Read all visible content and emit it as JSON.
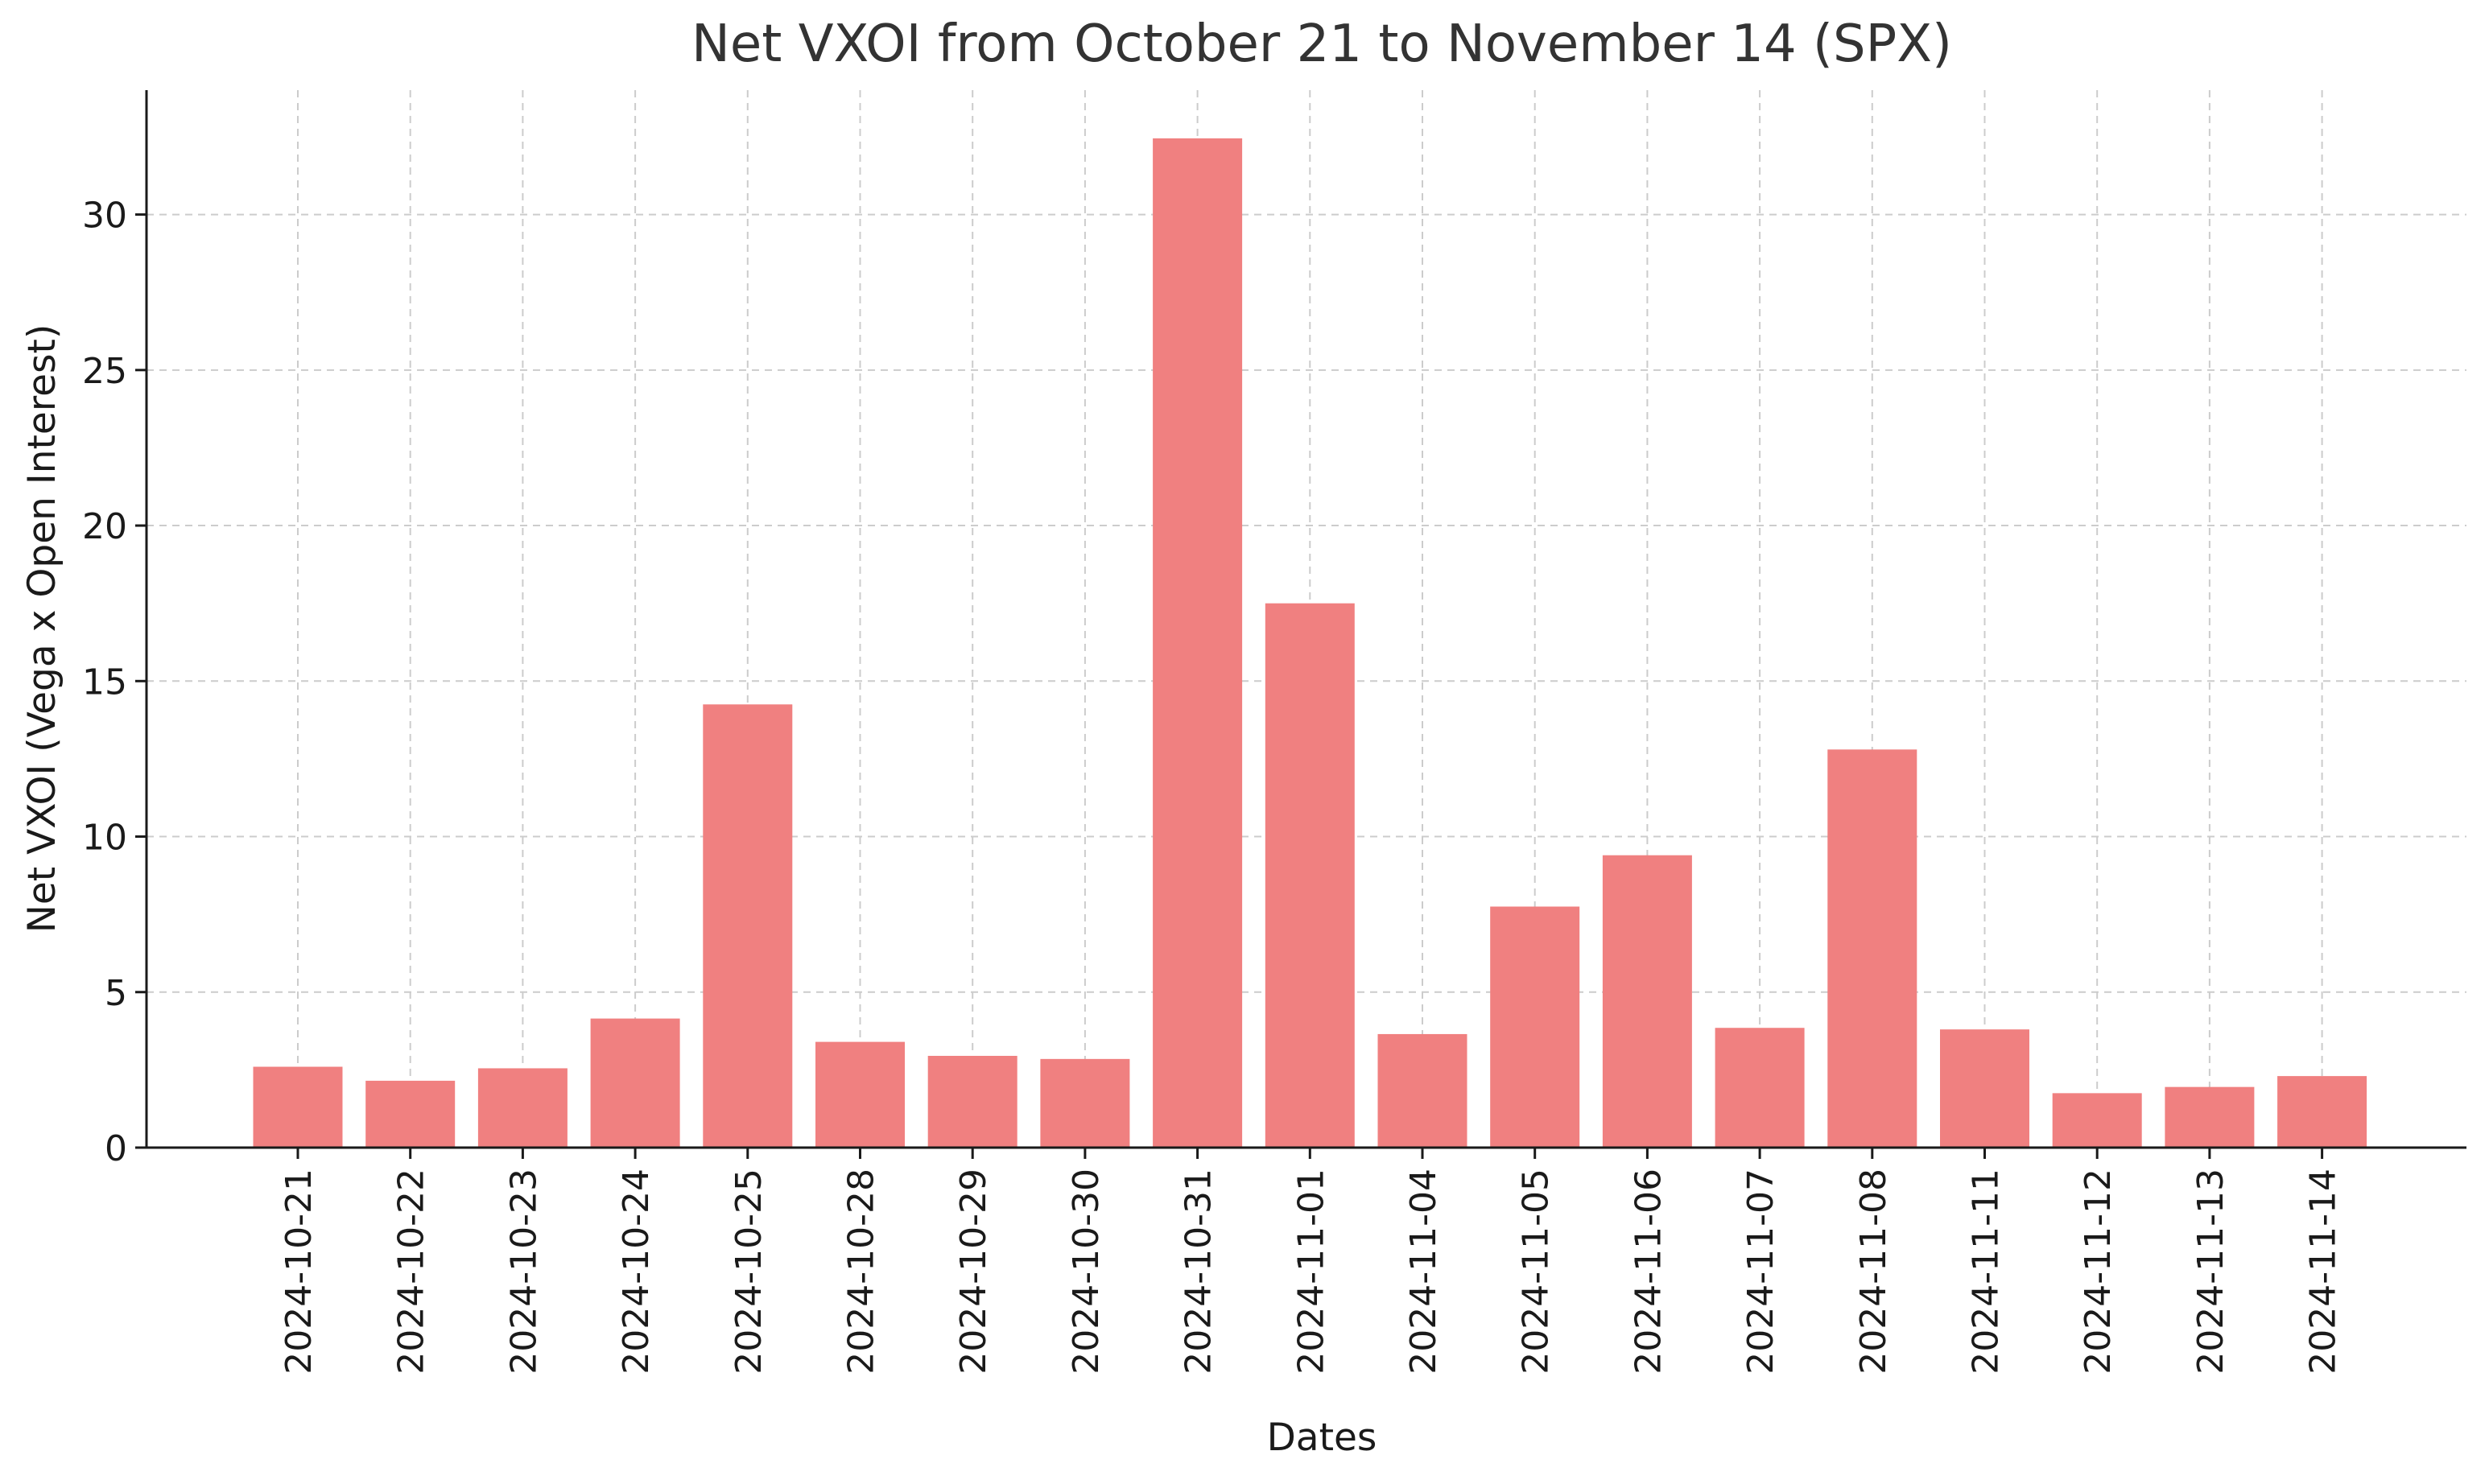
{
  "chart_data": {
    "type": "bar",
    "title": "Net VXOI from October 21 to November 14 (SPX)",
    "xlabel": "Dates",
    "ylabel": "Net VXOI (Vega x Open Interest)",
    "categories": [
      "2024-10-21",
      "2024-10-22",
      "2024-10-23",
      "2024-10-24",
      "2024-10-25",
      "2024-10-28",
      "2024-10-29",
      "2024-10-30",
      "2024-10-31",
      "2024-11-01",
      "2024-11-04",
      "2024-11-05",
      "2024-11-06",
      "2024-11-07",
      "2024-11-08",
      "2024-11-11",
      "2024-11-12",
      "2024-11-13",
      "2024-11-14"
    ],
    "values": [
      2.6,
      2.15,
      2.55,
      4.15,
      14.25,
      3.4,
      2.95,
      2.85,
      32.45,
      17.5,
      3.65,
      7.75,
      9.4,
      3.85,
      12.8,
      3.8,
      1.75,
      1.95,
      2.3
    ],
    "ylim": [
      0,
      34
    ],
    "yticks": [
      0,
      5,
      10,
      15,
      20,
      25,
      30
    ],
    "grid": true,
    "grid_style": "dashed",
    "bar_color": "#F08080",
    "axis_color": "#1a1a1a",
    "grid_color": "#cccccc"
  }
}
